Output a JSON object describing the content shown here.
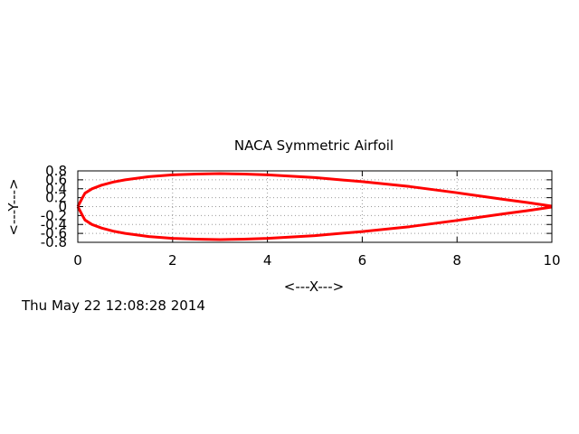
{
  "chart_data": {
    "type": "line",
    "title": "NACA Symmetric Airfoil",
    "xlabel": "<---X--->",
    "ylabel": "<---Y--->",
    "xlim": [
      0,
      10
    ],
    "ylim": [
      -0.8,
      0.8
    ],
    "grid": true,
    "x_ticks": [
      0,
      2,
      4,
      6,
      8,
      10
    ],
    "y_ticks": [
      -0.8,
      -0.6,
      -0.4,
      -0.2,
      0,
      0.2,
      0.4,
      0.6,
      0.8
    ],
    "x_tick_labels": [
      "0",
      "2",
      "4",
      "6",
      "8",
      "10"
    ],
    "y_tick_labels": [
      "-0.8",
      "-0.6",
      "-0.4",
      "-0.2",
      "0",
      "0.2",
      "0.4",
      "0.6",
      "0.8"
    ],
    "line_color": "#ff0000",
    "series": [
      {
        "x": [
          0,
          0.1,
          0.15,
          0.3,
          0.5,
          0.75,
          1.0,
          1.5,
          2.0,
          2.5,
          3.0,
          3.5,
          4.0,
          5.0,
          6.0,
          7.0,
          8.0,
          9.0,
          9.5,
          10.0
        ],
        "y": [
          0,
          0.2,
          0.3,
          0.4,
          0.48,
          0.55,
          0.6,
          0.67,
          0.71,
          0.73,
          0.74,
          0.73,
          0.71,
          0.65,
          0.56,
          0.45,
          0.31,
          0.16,
          0.09,
          0.01
        ]
      },
      {
        "x": [
          0,
          0.1,
          0.15,
          0.3,
          0.5,
          0.75,
          1.0,
          1.5,
          2.0,
          2.5,
          3.0,
          3.5,
          4.0,
          5.0,
          6.0,
          7.0,
          8.0,
          9.0,
          9.5,
          10.0
        ],
        "y": [
          0,
          -0.2,
          -0.3,
          -0.4,
          -0.48,
          -0.55,
          -0.6,
          -0.67,
          -0.71,
          -0.73,
          -0.74,
          -0.73,
          -0.71,
          -0.65,
          -0.56,
          -0.45,
          -0.31,
          -0.16,
          -0.09,
          -0.01
        ]
      }
    ]
  },
  "timestamp": "Thu May 22 12:08:28 2014"
}
